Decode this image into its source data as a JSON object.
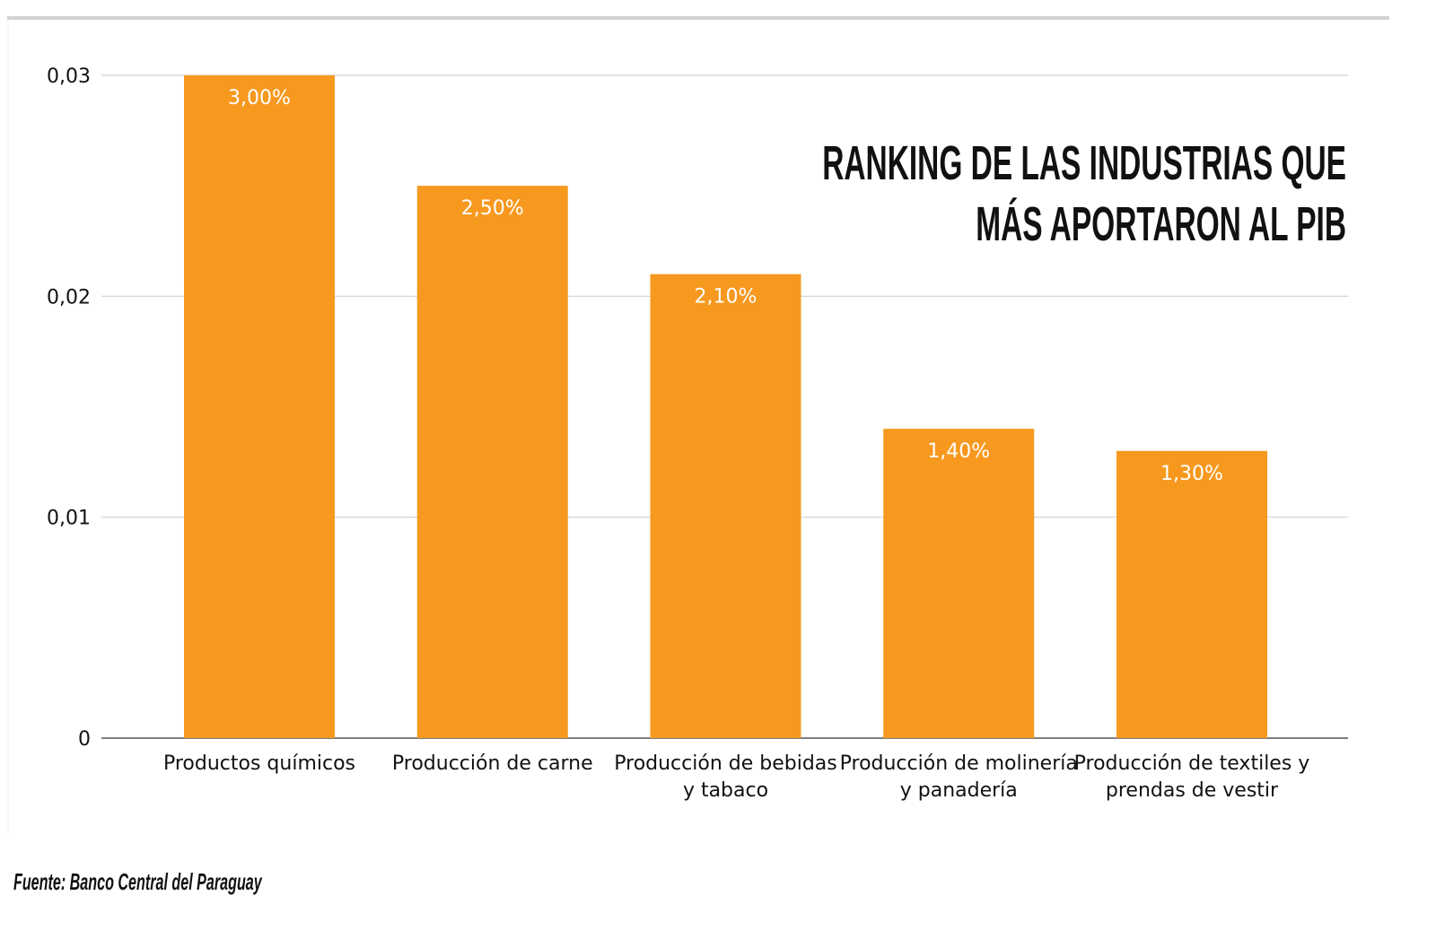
{
  "chart_data": {
    "type": "bar",
    "title": [
      "RANKING DE LAS INDUSTRIAS QUE",
      "MÁS APORTARON AL PIB"
    ],
    "categories": [
      [
        "Productos químicos"
      ],
      [
        "Producción de carne"
      ],
      [
        "Producción de bebidas",
        "y tabaco"
      ],
      [
        "Producción de molinería",
        "y panadería"
      ],
      [
        "Producción de textiles y",
        "prendas de vestir"
      ]
    ],
    "values": [
      0.03,
      0.025,
      0.021,
      0.014,
      0.013
    ],
    "data_labels": [
      "3,00%",
      "2,50%",
      "2,10%",
      "1,40%",
      "1,30%"
    ],
    "ylim": [
      0,
      0.03
    ],
    "yticks": [
      0,
      0.01,
      0.02,
      0.03
    ],
    "ytick_labels": [
      "0",
      "0,01",
      "0,02",
      "0,03"
    ],
    "grid": true,
    "bar_color": "#F7991F",
    "source": "Fuente: Banco Central del Paraguay"
  }
}
